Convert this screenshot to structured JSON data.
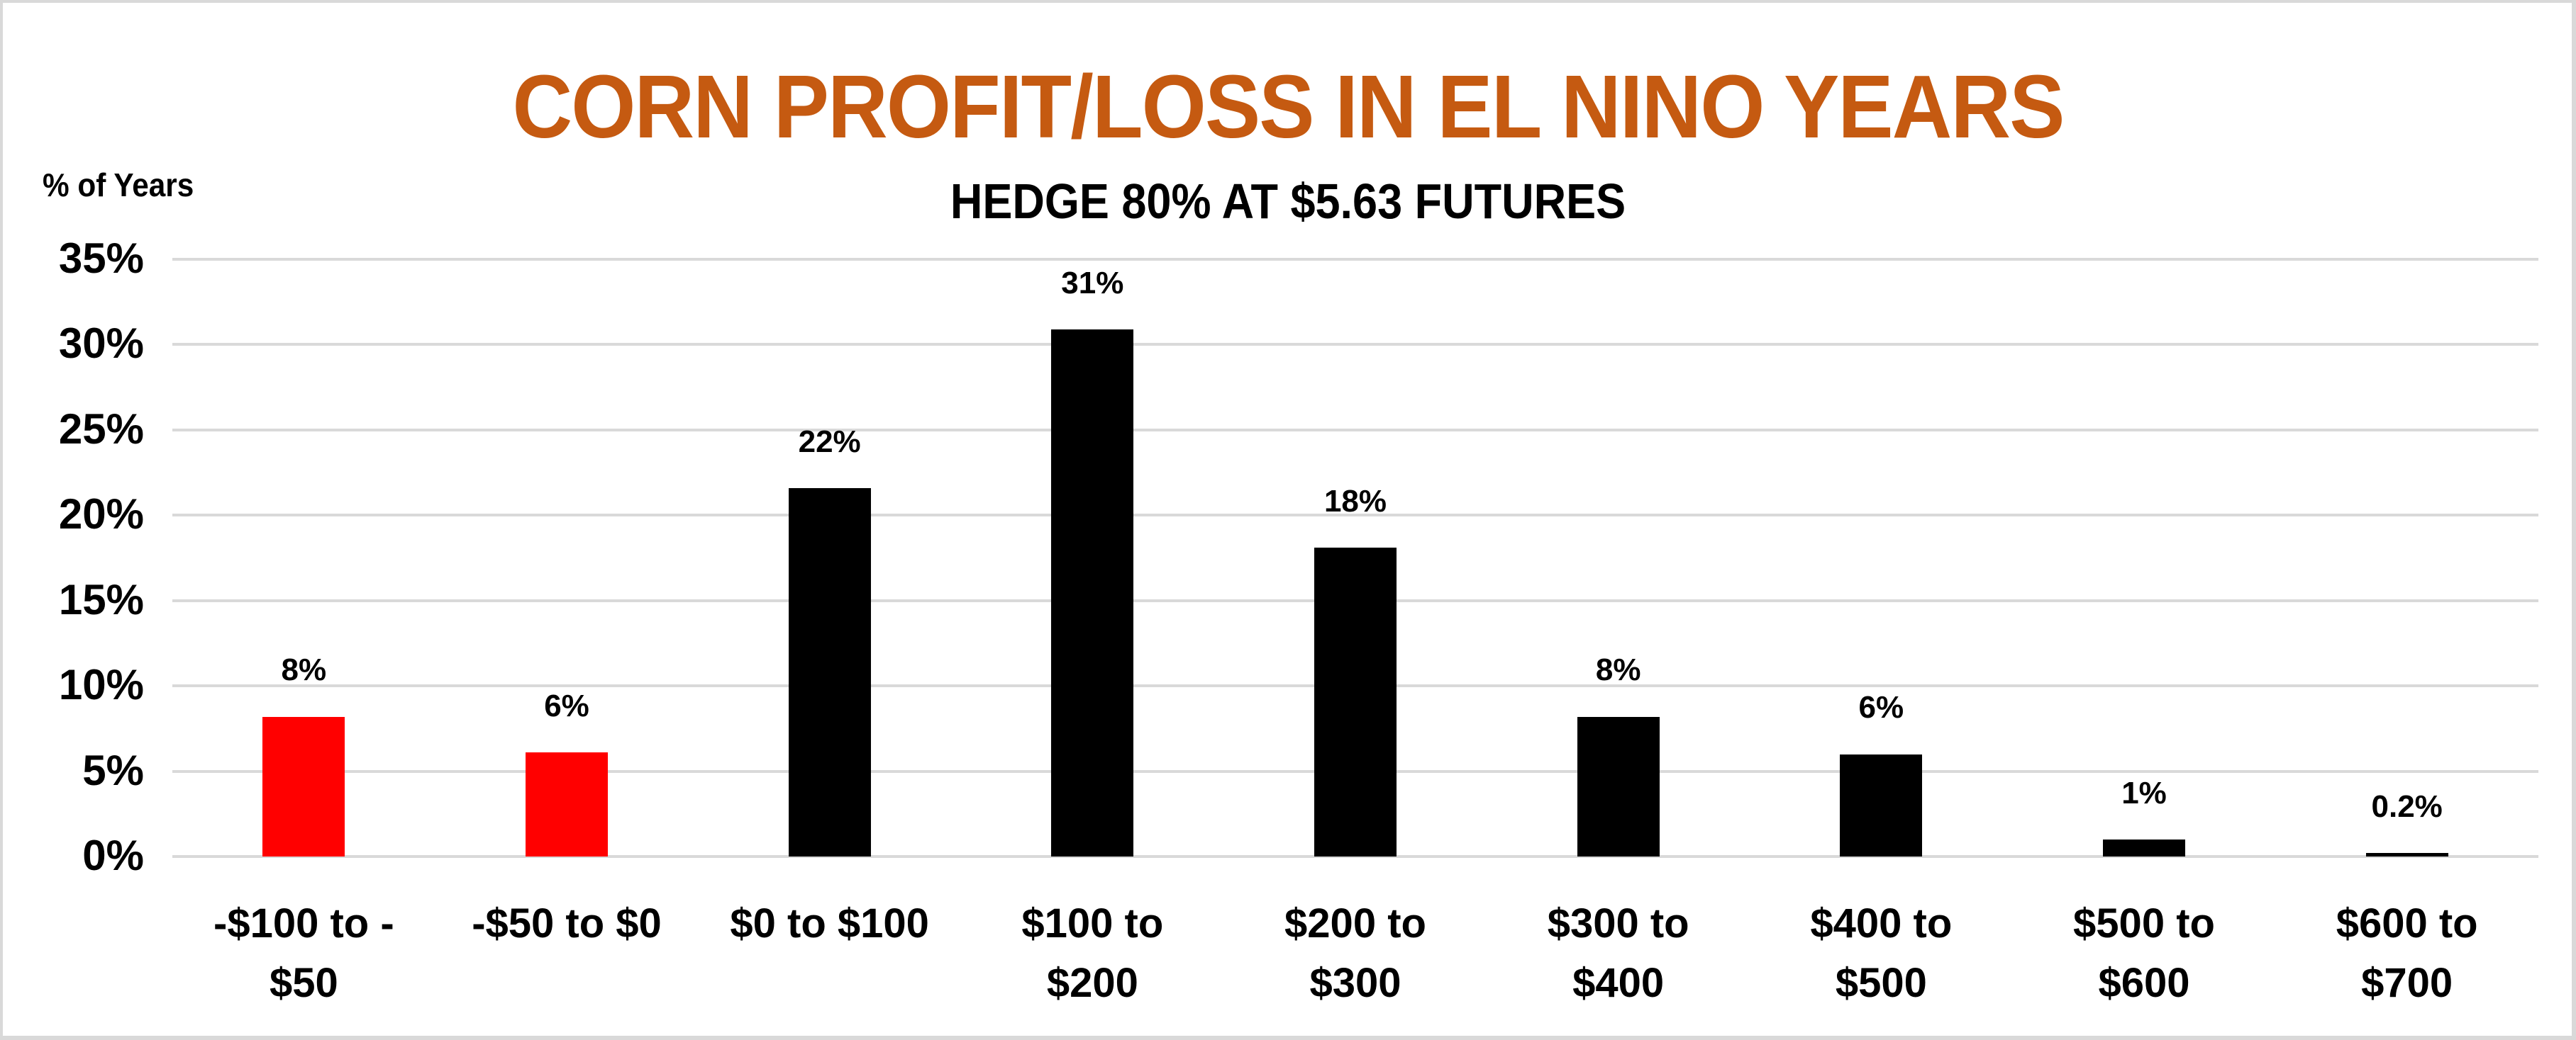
{
  "chart_data": {
    "type": "bar",
    "title": "CORN PROFIT/LOSS IN EL NINO YEARS",
    "subtitle": "HEDGE 80% AT $5.63 FUTURES",
    "xlabel": "",
    "ylabel": "% of Years",
    "ylim": [
      0,
      35
    ],
    "yticks": [
      "0%",
      "5%",
      "10%",
      "15%",
      "20%",
      "25%",
      "30%",
      "35%"
    ],
    "grid": true,
    "legend": null,
    "categories": [
      "-$100 to -$50",
      "-$50 to $0",
      "$0 to $100",
      "$100 to $200",
      "$200 to $300",
      "$300 to $400",
      "$400 to $500",
      "$500 to $600",
      "$600 to $700"
    ],
    "category_lines": [
      [
        "-$100 to -",
        "$50"
      ],
      [
        "-$50 to $0"
      ],
      [
        "$0 to $100"
      ],
      [
        "$100 to",
        "$200"
      ],
      [
        "$200 to",
        "$300"
      ],
      [
        "$300 to",
        "$400"
      ],
      [
        "$400 to",
        "$500"
      ],
      [
        "$500 to",
        "$600"
      ],
      [
        "$600 to",
        "$700"
      ]
    ],
    "values": [
      8.2,
      6.1,
      21.6,
      30.9,
      18.1,
      8.2,
      6.0,
      1.0,
      0.2
    ],
    "data_labels": [
      "8%",
      "6%",
      "22%",
      "31%",
      "18%",
      "8%",
      "6%",
      "1%",
      "0.2%"
    ],
    "bar_colors": [
      "#FF0000",
      "#FF0000",
      "#000000",
      "#000000",
      "#000000",
      "#000000",
      "#000000",
      "#000000",
      "#000000"
    ]
  },
  "colors": {
    "title": "#C55A11",
    "loss_bar": "#FF0000",
    "profit_bar": "#000000",
    "gridline": "#D9D9D9"
  }
}
